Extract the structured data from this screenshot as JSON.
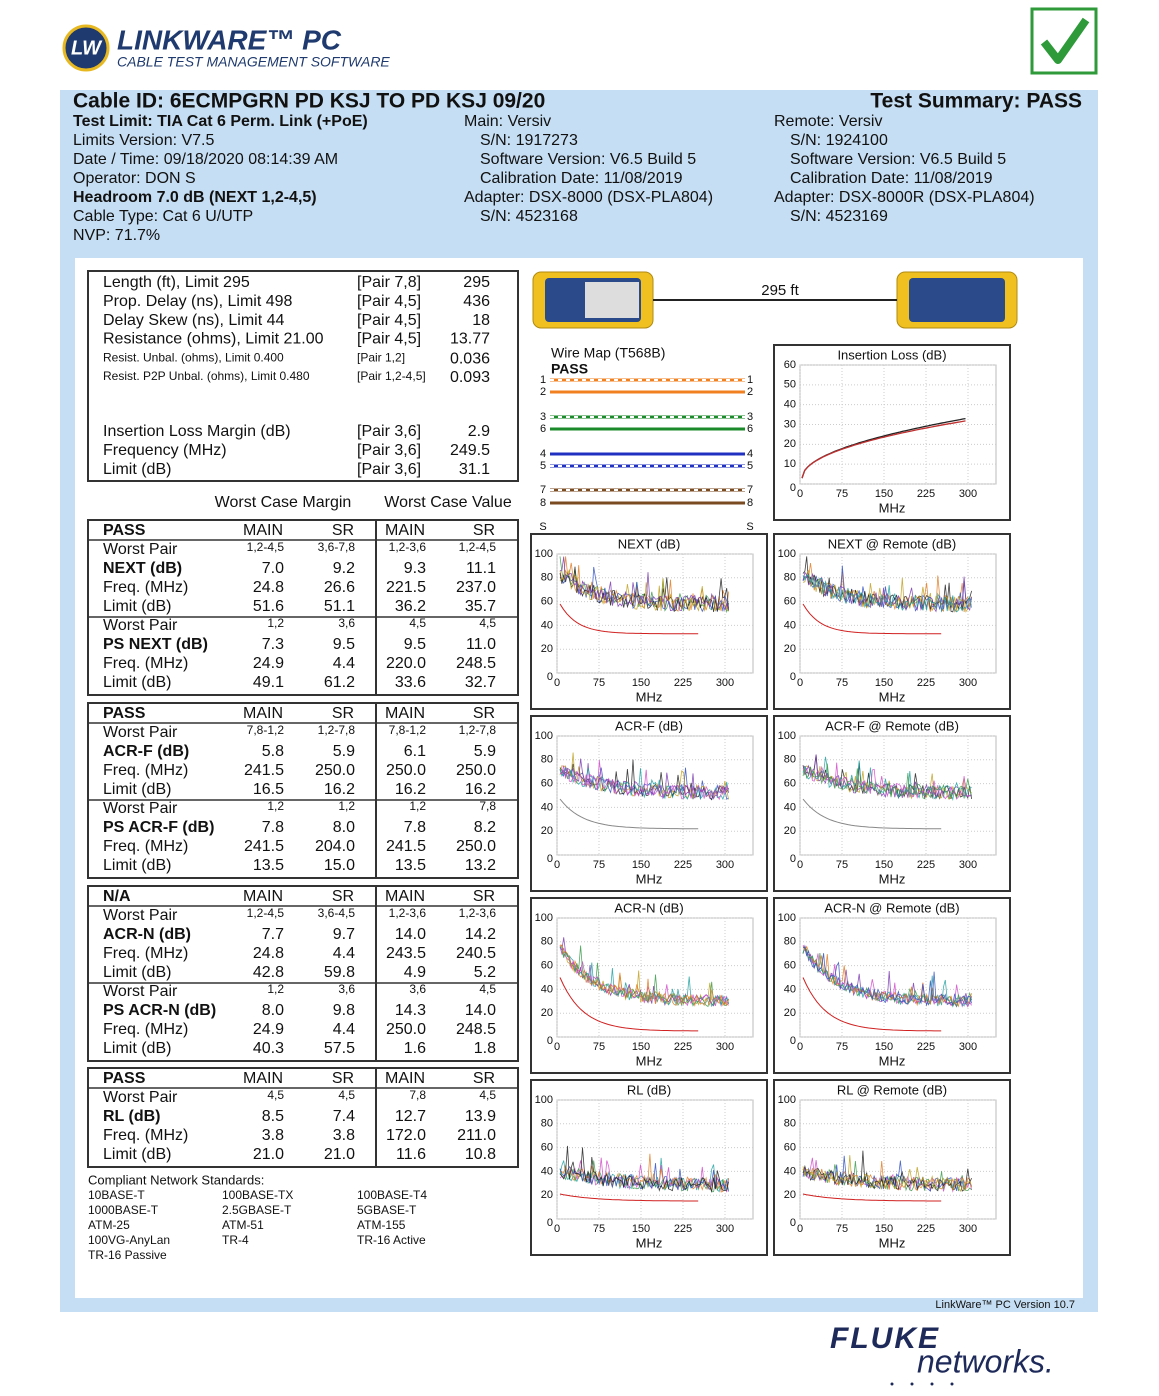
{
  "header": {
    "badge": "LW",
    "brand": "LINKWARE™ PC",
    "tagline": "CABLE TEST MANAGEMENT SOFTWARE"
  },
  "summary": {
    "cable_id": "Cable ID: 6ECMPGRN PD KSJ TO PD KSJ 09/20",
    "result": "Test Summary: PASS"
  },
  "info": {
    "left": [
      "Test Limit: TIA Cat 6 Perm. Link (+PoE)",
      "Limits Version: V7.5",
      "Date / Time: 09/18/2020  08:14:39 AM",
      "Operator: DON S",
      "Headroom 7.0 dB (NEXT 1,2-4,5)",
      "Cable Type: Cat 6 U/UTP",
      "NVP: 71.7%"
    ],
    "main": [
      "Main: Versiv",
      "S/N: 1917273",
      "Software Version: V6.5 Build 5",
      "Calibration Date: 11/08/2019",
      "Adapter: DSX-8000 (DSX-PLA804)",
      "S/N: 4523168"
    ],
    "remote": [
      "Remote: Versiv",
      "S/N: 1924100",
      "Software Version: V6.5 Build 5",
      "Calibration Date: 11/08/2019",
      "Adapter: DSX-8000R (DSX-PLA804)",
      "S/N: 4523169"
    ]
  },
  "results": {
    "top": [
      [
        "Length (ft), Limit 295",
        "[Pair 7,8]",
        "295"
      ],
      [
        "Prop. Delay (ns), Limit 498",
        "[Pair 4,5]",
        "436"
      ],
      [
        "Delay Skew (ns), Limit 44",
        "[Pair 4,5]",
        "18"
      ],
      [
        "Resistance (ohms), Limit 21.00",
        "[Pair 4,5]",
        "13.77"
      ],
      [
        "Resist. Unbal. (ohms), Limit 0.400",
        "[Pair 1,2]",
        "0.036"
      ],
      [
        "Resist. P2P Unbal. (ohms), Limit 0.480",
        "[Pair 1,2-4,5]",
        "0.093"
      ]
    ],
    "insertion": [
      [
        "Insertion Loss Margin (dB)",
        "[Pair 3,6]",
        "2.9"
      ],
      [
        "Frequency (MHz)",
        "[Pair 3,6]",
        "249.5"
      ],
      [
        "Limit (dB)",
        "[Pair 3,6]",
        "31.1"
      ]
    ]
  },
  "worst_case": {
    "headings": [
      "Worst Case Margin",
      "Worst Case Value"
    ],
    "tables": [
      {
        "status": "PASS",
        "columns": [
          "MAIN",
          "SR",
          "MAIN",
          "SR"
        ],
        "groups": [
          [
            [
              "Worst Pair",
              "1,2-4,5",
              "3,6-7,8",
              "1,2-3,6",
              "1,2-4,5"
            ],
            [
              "NEXT (dB)",
              "7.0",
              "9.2",
              "9.3",
              "11.1"
            ],
            [
              "Freq. (MHz)",
              "24.8",
              "26.6",
              "221.5",
              "237.0"
            ],
            [
              "Limit (dB)",
              "51.6",
              "51.1",
              "36.2",
              "35.7"
            ]
          ],
          [
            [
              "Worst Pair",
              "1,2",
              "3,6",
              "4,5",
              "4,5"
            ],
            [
              "PS NEXT (dB)",
              "7.3",
              "9.5",
              "9.5",
              "11.0"
            ],
            [
              "Freq. (MHz)",
              "24.9",
              "4.4",
              "220.0",
              "248.5"
            ],
            [
              "Limit (dB)",
              "49.1",
              "61.2",
              "33.6",
              "32.7"
            ]
          ]
        ]
      },
      {
        "status": "PASS",
        "columns": [
          "MAIN",
          "SR",
          "MAIN",
          "SR"
        ],
        "groups": [
          [
            [
              "Worst Pair",
              "7,8-1,2",
              "1,2-7,8",
              "7,8-1,2",
              "1,2-7,8"
            ],
            [
              "ACR-F (dB)",
              "5.8",
              "5.9",
              "6.1",
              "5.9"
            ],
            [
              "Freq. (MHz)",
              "241.5",
              "250.0",
              "250.0",
              "250.0"
            ],
            [
              "Limit (dB)",
              "16.5",
              "16.2",
              "16.2",
              "16.2"
            ]
          ],
          [
            [
              "Worst Pair",
              "1,2",
              "1,2",
              "1,2",
              "7,8"
            ],
            [
              "PS ACR-F (dB)",
              "7.8",
              "8.0",
              "7.8",
              "8.2"
            ],
            [
              "Freq. (MHz)",
              "241.5",
              "204.0",
              "241.5",
              "250.0"
            ],
            [
              "Limit (dB)",
              "13.5",
              "15.0",
              "13.5",
              "13.2"
            ]
          ]
        ]
      },
      {
        "status": "N/A",
        "columns": [
          "MAIN",
          "SR",
          "MAIN",
          "SR"
        ],
        "groups": [
          [
            [
              "Worst Pair",
              "1,2-4,5",
              "3,6-4,5",
              "1,2-3,6",
              "1,2-3,6"
            ],
            [
              "ACR-N (dB)",
              "7.7",
              "9.7",
              "14.0",
              "14.2"
            ],
            [
              "Freq. (MHz)",
              "24.8",
              "4.4",
              "243.5",
              "240.5"
            ],
            [
              "Limit (dB)",
              "42.8",
              "59.8",
              "4.9",
              "5.2"
            ]
          ],
          [
            [
              "Worst Pair",
              "1,2",
              "3,6",
              "3,6",
              "4,5"
            ],
            [
              "PS ACR-N (dB)",
              "8.0",
              "9.8",
              "14.3",
              "14.0"
            ],
            [
              "Freq. (MHz)",
              "24.9",
              "4.4",
              "250.0",
              "248.5"
            ],
            [
              "Limit (dB)",
              "40.3",
              "57.5",
              "1.6",
              "1.8"
            ]
          ]
        ]
      },
      {
        "status": "PASS",
        "columns": [
          "MAIN",
          "SR",
          "MAIN",
          "SR"
        ],
        "groups": [
          [
            [
              "Worst Pair",
              "4,5",
              "4,5",
              "7,8",
              "4,5"
            ],
            [
              "RL (dB)",
              "8.5",
              "7.4",
              "12.7",
              "13.9"
            ],
            [
              "Freq. (MHz)",
              "3.8",
              "3.8",
              "172.0",
              "211.0"
            ],
            [
              "Limit (dB)",
              "21.0",
              "21.0",
              "11.6",
              "10.8"
            ]
          ]
        ]
      }
    ]
  },
  "standards": {
    "title": "Compliant Network Standards:",
    "items": [
      "10BASE-T",
      "100BASE-TX",
      "100BASE-T4",
      "1000BASE-T",
      "2.5GBASE-T",
      "5GBASE-T",
      "ATM-25",
      "ATM-51",
      "ATM-155",
      "100VG-AnyLan",
      "TR-4",
      "TR-16 Active",
      "TR-16 Passive"
    ]
  },
  "link": {
    "length": "295 ft"
  },
  "wire_map": {
    "title": "Wire Map (T568B)",
    "result": "PASS",
    "pins": [
      "1",
      "2",
      "3",
      "6",
      "4",
      "5",
      "7",
      "8"
    ],
    "shield": "S"
  },
  "graphs": [
    {
      "title": "Insertion Loss (dB)",
      "xlabel": "MHz",
      "xlim": [
        0,
        350
      ],
      "ylim": [
        0,
        60
      ],
      "xticks": [
        0,
        75,
        150,
        225,
        300
      ],
      "yticks": [
        0,
        10,
        20,
        30,
        40,
        50,
        60
      ]
    },
    {
      "title": "NEXT (dB)",
      "xlabel": "MHz",
      "xlim": [
        0,
        350
      ],
      "ylim": [
        0,
        100
      ],
      "xticks": [
        0,
        75,
        150,
        225,
        300
      ],
      "yticks": [
        0,
        20,
        40,
        60,
        80,
        100
      ]
    },
    {
      "title": "NEXT @ Remote (dB)",
      "xlabel": "MHz",
      "xlim": [
        0,
        350
      ],
      "ylim": [
        0,
        100
      ],
      "xticks": [
        0,
        75,
        150,
        225,
        300
      ],
      "yticks": [
        0,
        20,
        40,
        60,
        80,
        100
      ]
    },
    {
      "title": "ACR-F (dB)",
      "xlabel": "MHz",
      "xlim": [
        0,
        350
      ],
      "ylim": [
        0,
        100
      ],
      "xticks": [
        0,
        75,
        150,
        225,
        300
      ],
      "yticks": [
        0,
        20,
        40,
        60,
        80,
        100
      ]
    },
    {
      "title": "ACR-F @ Remote (dB)",
      "xlabel": "MHz",
      "xlim": [
        0,
        350
      ],
      "ylim": [
        0,
        100
      ],
      "xticks": [
        0,
        75,
        150,
        225,
        300
      ],
      "yticks": [
        0,
        20,
        40,
        60,
        80,
        100
      ]
    },
    {
      "title": "ACR-N (dB)",
      "xlabel": "MHz",
      "xlim": [
        0,
        350
      ],
      "ylim": [
        0,
        100
      ],
      "xticks": [
        0,
        75,
        150,
        225,
        300
      ],
      "yticks": [
        0,
        20,
        40,
        60,
        80,
        100
      ]
    },
    {
      "title": "ACR-N @ Remote (dB)",
      "xlabel": "MHz",
      "xlim": [
        0,
        350
      ],
      "ylim": [
        0,
        100
      ],
      "xticks": [
        0,
        75,
        150,
        225,
        300
      ],
      "yticks": [
        0,
        20,
        40,
        60,
        80,
        100
      ]
    },
    {
      "title": "RL (dB)",
      "xlabel": "MHz",
      "xlim": [
        0,
        350
      ],
      "ylim": [
        0,
        100
      ],
      "xticks": [
        0,
        75,
        150,
        225,
        300
      ],
      "yticks": [
        0,
        20,
        40,
        60,
        80,
        100
      ]
    },
    {
      "title": "RL @ Remote (dB)",
      "xlabel": "MHz",
      "xlim": [
        0,
        350
      ],
      "ylim": [
        0,
        100
      ],
      "xticks": [
        0,
        75,
        150,
        225,
        300
      ],
      "yticks": [
        0,
        20,
        40,
        60,
        80,
        100
      ]
    }
  ],
  "footer": {
    "version": "LinkWare™ PC Version 10.7",
    "logo_top": "FLUKE",
    "logo_bottom": "networks."
  }
}
